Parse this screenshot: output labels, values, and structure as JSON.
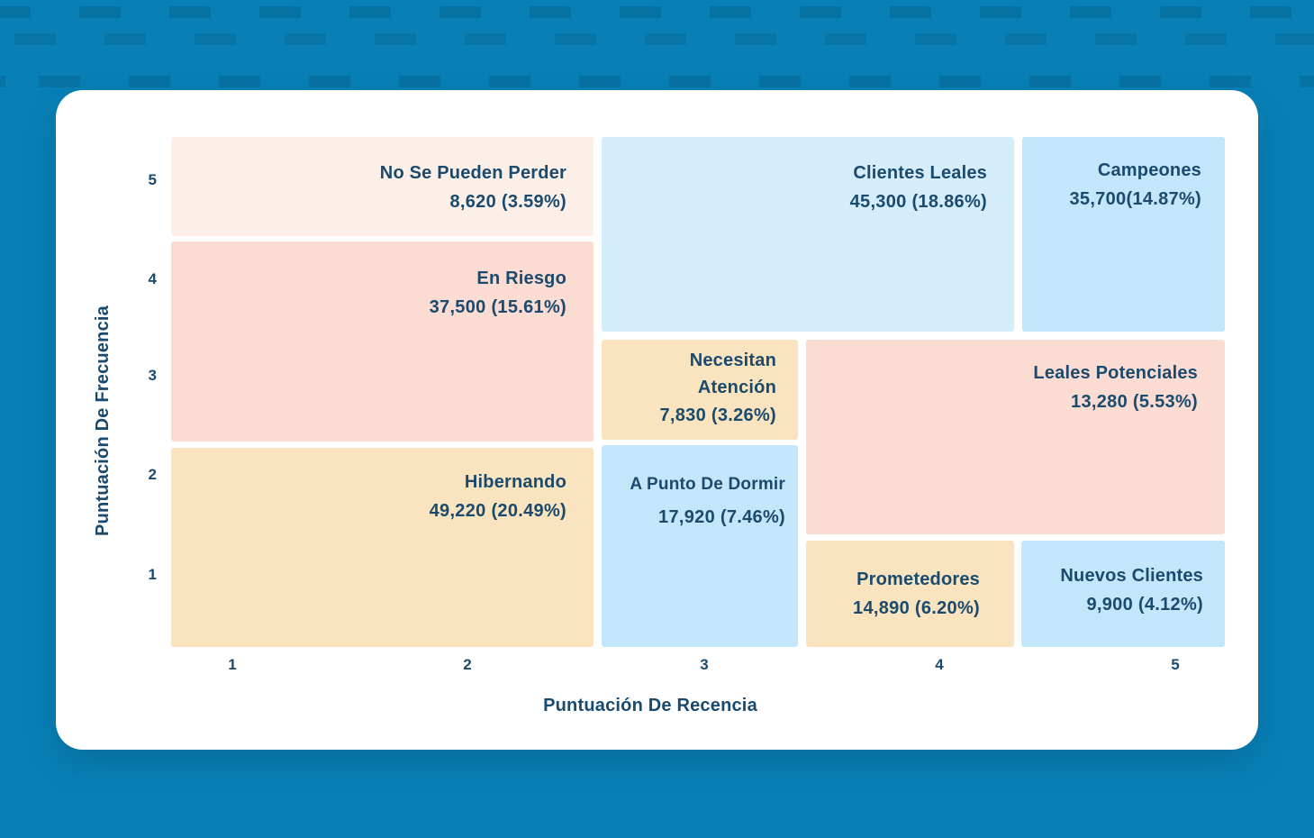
{
  "page": {
    "background_color": "#0880b6",
    "pattern_dash_color": "#035478",
    "card_color": "#ffffff",
    "text_color": "#1a4a6e"
  },
  "chart_data": {
    "type": "heatmap",
    "variant": "rfm-segment-matrix",
    "title": "",
    "xlabel": "Puntuación De Recencia",
    "ylabel": "Puntuación De Frecuencia",
    "x_ticks": [
      "1",
      "2",
      "3",
      "4",
      "5"
    ],
    "y_ticks": [
      "5",
      "4",
      "3",
      "2",
      "1"
    ],
    "xlim": [
      1,
      5
    ],
    "ylim": [
      1,
      5
    ],
    "grid": false,
    "palette": {
      "peach_light": "#fcefe7",
      "salmon": "#fbdcd2",
      "tan": "#f9e4bf",
      "blue_lighter": "#d5ecfa",
      "blue_light": "#c3e6fa"
    },
    "segments": [
      {
        "name": "No Se Pueden Perder",
        "customers": 8620,
        "percent": 3.59,
        "stat": "8,620 (3.59%)",
        "recency_span": [
          1,
          2
        ],
        "frequency_span": [
          5,
          5
        ],
        "color": "#fcefe7"
      },
      {
        "name": "En Riesgo",
        "customers": 37500,
        "percent": 15.61,
        "stat": "37,500 (15.61%)",
        "recency_span": [
          1,
          2
        ],
        "frequency_span": [
          3,
          4
        ],
        "color": "#fbdcd2"
      },
      {
        "name": "Hibernando",
        "customers": 49220,
        "percent": 20.49,
        "stat": "49,220 (20.49%)",
        "recency_span": [
          1,
          2
        ],
        "frequency_span": [
          1,
          2
        ],
        "color": "#f9e4bf"
      },
      {
        "name": "Clientes Leales",
        "customers": 45300,
        "percent": 18.86,
        "stat": "45,300 (18.86%)",
        "recency_span": [
          3,
          4
        ],
        "frequency_span": [
          4,
          5
        ],
        "color": "#d5ecfa"
      },
      {
        "name": "Campeones",
        "customers": 35700,
        "percent": 14.87,
        "stat": "35,700(14.87%)",
        "recency_span": [
          5,
          5
        ],
        "frequency_span": [
          4,
          5
        ],
        "color": "#c3e6fa"
      },
      {
        "name": "Necesitan Atención",
        "customers": 7830,
        "percent": 3.26,
        "stat": "7,830 (3.26%)",
        "recency_span": [
          3,
          3
        ],
        "frequency_span": [
          3,
          3
        ],
        "color": "#f9e4bf"
      },
      {
        "name": "Leales Potenciales",
        "customers": 13280,
        "percent": 5.53,
        "stat": "13,280 (5.53%)",
        "recency_span": [
          4,
          5
        ],
        "frequency_span": [
          2,
          3
        ],
        "color": "#fbdcd2"
      },
      {
        "name": "A Punto De Dormir",
        "customers": 17920,
        "percent": 7.46,
        "stat": "17,920 (7.46%)",
        "recency_span": [
          3,
          3
        ],
        "frequency_span": [
          1,
          2
        ],
        "color": "#c3e6fa"
      },
      {
        "name": "Prometedores",
        "customers": 14890,
        "percent": 6.2,
        "stat": "14,890 (6.20%)",
        "recency_span": [
          4,
          4
        ],
        "frequency_span": [
          1,
          1
        ],
        "color": "#f9e4bf"
      },
      {
        "name": "Nuevos Clientes",
        "customers": 9900,
        "percent": 4.12,
        "stat": "9,900 (4.12%)",
        "recency_span": [
          5,
          5
        ],
        "frequency_span": [
          1,
          1
        ],
        "color": "#c3e6fa"
      }
    ]
  }
}
